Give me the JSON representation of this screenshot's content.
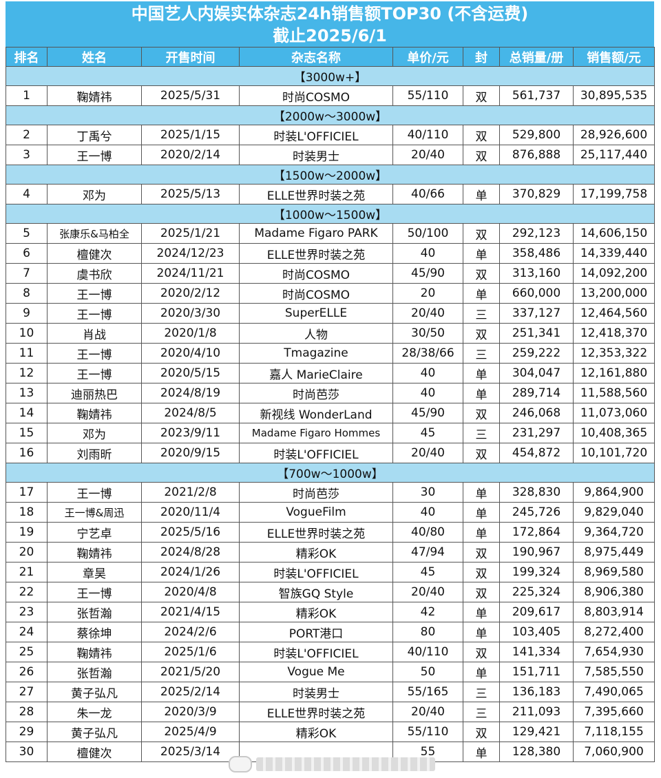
{
  "title": {
    "line1": "中国艺人内娱实体杂志24h销售额TOP30 (不含运费)",
    "line2": "截止2025/6/1"
  },
  "columns": [
    "排名",
    "姓名",
    "开售时间",
    "杂志名称",
    "单价/元",
    "封",
    "总销量/册",
    "销售额/元"
  ],
  "sections": [
    {
      "band": "【3000w+】",
      "rows": [
        {
          "rank": "1",
          "name": "鞠婧祎",
          "date": "2025/5/31",
          "magazine": "时尚COSMO",
          "price": "55/110",
          "cover": "双",
          "volume": "561,737",
          "sales": "30,895,535"
        }
      ]
    },
    {
      "band": "【2000w～3000w】",
      "rows": [
        {
          "rank": "2",
          "name": "丁禹兮",
          "date": "2025/1/15",
          "magazine": "时装L'OFFICIEL",
          "price": "40/110",
          "cover": "双",
          "volume": "529,800",
          "sales": "28,926,600"
        },
        {
          "rank": "3",
          "name": "王一博",
          "date": "2020/2/14",
          "magazine": "时装男士",
          "price": "20/40",
          "cover": "双",
          "volume": "876,888",
          "sales": "25,117,440"
        }
      ]
    },
    {
      "band": "【1500w～2000w】",
      "rows": [
        {
          "rank": "4",
          "name": "邓为",
          "date": "2025/5/13",
          "magazine": "ELLE世界时装之苑",
          "price": "40/66",
          "cover": "单",
          "volume": "370,829",
          "sales": "17,199,758"
        }
      ]
    },
    {
      "band": "【1000w～1500w】",
      "rows": [
        {
          "rank": "5",
          "name": "张康乐&马柏全",
          "date": "2025/1/21",
          "magazine": "Madame Figaro PARK",
          "price": "50/100",
          "cover": "双",
          "volume": "292,123",
          "sales": "14,606,150"
        },
        {
          "rank": "6",
          "name": "檀健次",
          "date": "2024/12/23",
          "magazine": "ELLE世界时装之苑",
          "price": "40",
          "cover": "单",
          "volume": "358,486",
          "sales": "14,339,440"
        },
        {
          "rank": "7",
          "name": "虞书欣",
          "date": "2024/11/21",
          "magazine": "时尚COSMO",
          "price": "45/90",
          "cover": "双",
          "volume": "313,160",
          "sales": "14,092,200"
        },
        {
          "rank": "8",
          "name": "王一博",
          "date": "2020/2/12",
          "magazine": "时尚COSMO",
          "price": "20",
          "cover": "单",
          "volume": "660,000",
          "sales": "13,200,000"
        },
        {
          "rank": "9",
          "name": "王一博",
          "date": "2020/3/30",
          "magazine": "SuperELLE",
          "price": "20/40",
          "cover": "三",
          "volume": "337,127",
          "sales": "12,464,560"
        },
        {
          "rank": "10",
          "name": "肖战",
          "date": "2020/1/8",
          "magazine": "人物",
          "price": "30/50",
          "cover": "双",
          "volume": "251,341",
          "sales": "12,418,370"
        },
        {
          "rank": "11",
          "name": "王一博",
          "date": "2020/4/10",
          "magazine": "Tmagazine",
          "price": "28/38/66",
          "cover": "三",
          "volume": "259,222",
          "sales": "12,353,322"
        },
        {
          "rank": "12",
          "name": "王一博",
          "date": "2020/5/15",
          "magazine": "嘉人 MarieClaire",
          "price": "40",
          "cover": "单",
          "volume": "304,047",
          "sales": "12,161,880"
        },
        {
          "rank": "13",
          "name": "迪丽热巴",
          "date": "2024/8/19",
          "magazine": "时尚芭莎",
          "price": "40",
          "cover": "单",
          "volume": "289,714",
          "sales": "11,588,560"
        },
        {
          "rank": "14",
          "name": "鞠婧祎",
          "date": "2024/8/5",
          "magazine": "新视线 WonderLand",
          "price": "45/90",
          "cover": "双",
          "volume": "246,068",
          "sales": "11,073,060"
        },
        {
          "rank": "15",
          "name": "邓为",
          "date": "2023/9/11",
          "magazine": "Madame Figaro Hommes",
          "price": "45",
          "cover": "三",
          "volume": "231,297",
          "sales": "10,408,365"
        },
        {
          "rank": "16",
          "name": "刘雨昕",
          "date": "2020/9/15",
          "magazine": "时装L'OFFICIEL",
          "price": "20/40",
          "cover": "双",
          "volume": "454,872",
          "sales": "10,101,720"
        }
      ]
    },
    {
      "band": "【700w～1000w】",
      "rows": [
        {
          "rank": "17",
          "name": "王一博",
          "date": "2021/2/8",
          "magazine": "时尚芭莎",
          "price": "30",
          "cover": "单",
          "volume": "328,830",
          "sales": "9,864,900"
        },
        {
          "rank": "18",
          "name": "王一博&周迅",
          "date": "2020/11/4",
          "magazine": "VogueFilm",
          "price": "40",
          "cover": "单",
          "volume": "245,726",
          "sales": "9,829,040"
        },
        {
          "rank": "19",
          "name": "宁艺卓",
          "date": "2025/5/16",
          "magazine": "ELLE世界时装之苑",
          "price": "40/80",
          "cover": "单",
          "volume": "172,864",
          "sales": "9,364,720"
        },
        {
          "rank": "20",
          "name": "鞠婧祎",
          "date": "2024/8/28",
          "magazine": "精彩OK",
          "price": "47/94",
          "cover": "双",
          "volume": "190,967",
          "sales": "8,975,449"
        },
        {
          "rank": "21",
          "name": "章昊",
          "date": "2024/1/26",
          "magazine": "时装L'OFFICIEL",
          "price": "45",
          "cover": "双",
          "volume": "199,324",
          "sales": "8,969,580"
        },
        {
          "rank": "22",
          "name": "王一博",
          "date": "2020/4/8",
          "magazine": "智族GQ Style",
          "price": "20/40",
          "cover": "双",
          "volume": "225,324",
          "sales": "8,906,380"
        },
        {
          "rank": "23",
          "name": "张哲瀚",
          "date": "2021/4/15",
          "magazine": "精彩OK",
          "price": "42",
          "cover": "单",
          "volume": "209,617",
          "sales": "8,803,914"
        },
        {
          "rank": "24",
          "name": "蔡徐坤",
          "date": "2024/2/6",
          "magazine": "PORT港口",
          "price": "80",
          "cover": "单",
          "volume": "103,405",
          "sales": "8,272,400"
        },
        {
          "rank": "25",
          "name": "鞠婧祎",
          "date": "2025/1/6",
          "magazine": "时装L'OFFICIEL",
          "price": "40/110",
          "cover": "双",
          "volume": "141,334",
          "sales": "7,654,930"
        },
        {
          "rank": "26",
          "name": "张哲瀚",
          "date": "2021/5/20",
          "magazine": "Vogue Me",
          "price": "50",
          "cover": "单",
          "volume": "151,711",
          "sales": "7,585,550"
        },
        {
          "rank": "27",
          "name": "黄子弘凡",
          "date": "2025/2/14",
          "magazine": "时装男士",
          "price": "55/165",
          "cover": "三",
          "volume": "136,183",
          "sales": "7,490,065"
        },
        {
          "rank": "28",
          "name": "朱一龙",
          "date": "2020/3/9",
          "magazine": "ELLE世界时装之苑",
          "price": "20/40",
          "cover": "三",
          "volume": "211,093",
          "sales": "7,395,660"
        },
        {
          "rank": "29",
          "name": "黄子弘凡",
          "date": "2025/4/9",
          "magazine": "精彩OK",
          "price": "55/110",
          "cover": "双",
          "volume": "129,421",
          "sales": "7,118,155"
        },
        {
          "rank": "30",
          "name": "檀健次",
          "date": "2025/3/14",
          "magazine": "",
          "price": "55",
          "cover": "单",
          "volume": "128,380",
          "sales": "7,060,900"
        }
      ]
    }
  ],
  "colors": {
    "header_bg": "#46b6e8",
    "band_bg": "#a8dcf2",
    "grid_line": "#555555"
  }
}
